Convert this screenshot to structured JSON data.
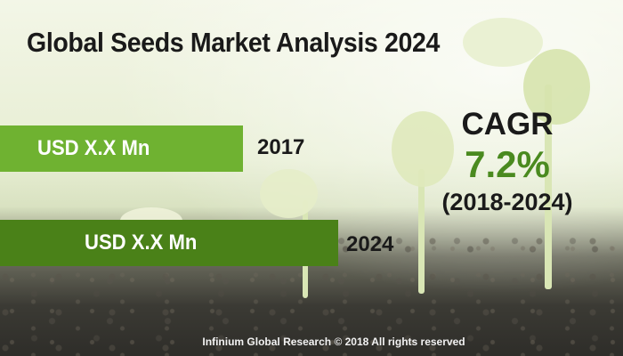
{
  "title": "Global Seeds Market Analysis 2024",
  "chart_data": {
    "type": "bar",
    "categories": [
      "2017",
      "2024"
    ],
    "value_labels": [
      "USD X.X Mn",
      "USD X.X Mn"
    ],
    "values": [
      null,
      null
    ]
  },
  "cagr": {
    "label": "CAGR",
    "value": "7.2%",
    "period": "(2018-2024)"
  },
  "footer": "Infinium Global Research © 2018 All rights reserved",
  "colors": {
    "bar_2017": "#6fb231",
    "bar_2024": "#4a8118",
    "cagr_value": "#4a8a1f"
  }
}
